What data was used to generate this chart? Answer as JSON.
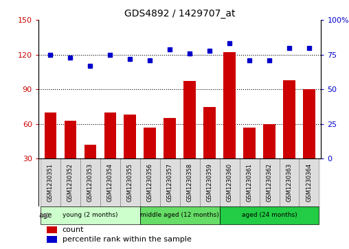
{
  "title": "GDS4892 / 1429707_at",
  "samples": [
    "GSM1230351",
    "GSM1230352",
    "GSM1230353",
    "GSM1230354",
    "GSM1230355",
    "GSM1230356",
    "GSM1230357",
    "GSM1230358",
    "GSM1230359",
    "GSM1230360",
    "GSM1230361",
    "GSM1230362",
    "GSM1230363",
    "GSM1230364"
  ],
  "counts": [
    70,
    63,
    42,
    70,
    68,
    57,
    65,
    97,
    75,
    122,
    57,
    60,
    98,
    90
  ],
  "percentiles": [
    75,
    73,
    67,
    75,
    72,
    71,
    79,
    76,
    78,
    83,
    71,
    71,
    80,
    80
  ],
  "groups": [
    {
      "label": "young (2 months)",
      "start": 0,
      "end": 5,
      "color": "#CCFFCC"
    },
    {
      "label": "middle aged (12 months)",
      "start": 5,
      "end": 9,
      "color": "#66DD66"
    },
    {
      "label": "aged (24 months)",
      "start": 9,
      "end": 14,
      "color": "#22CC44"
    }
  ],
  "bar_color": "#CC0000",
  "dot_color": "#0000CC",
  "left_ylim": [
    30,
    150
  ],
  "left_yticks": [
    30,
    60,
    90,
    120,
    150
  ],
  "right_ylim": [
    0,
    100
  ],
  "right_yticks": [
    0,
    25,
    50,
    75,
    100
  ],
  "right_yticklabels": [
    "0",
    "25",
    "50",
    "75",
    "100%"
  ],
  "hlines": [
    60,
    90,
    120
  ],
  "sample_box_color": "#DDDDDD",
  "sample_box_edge": "#888888"
}
